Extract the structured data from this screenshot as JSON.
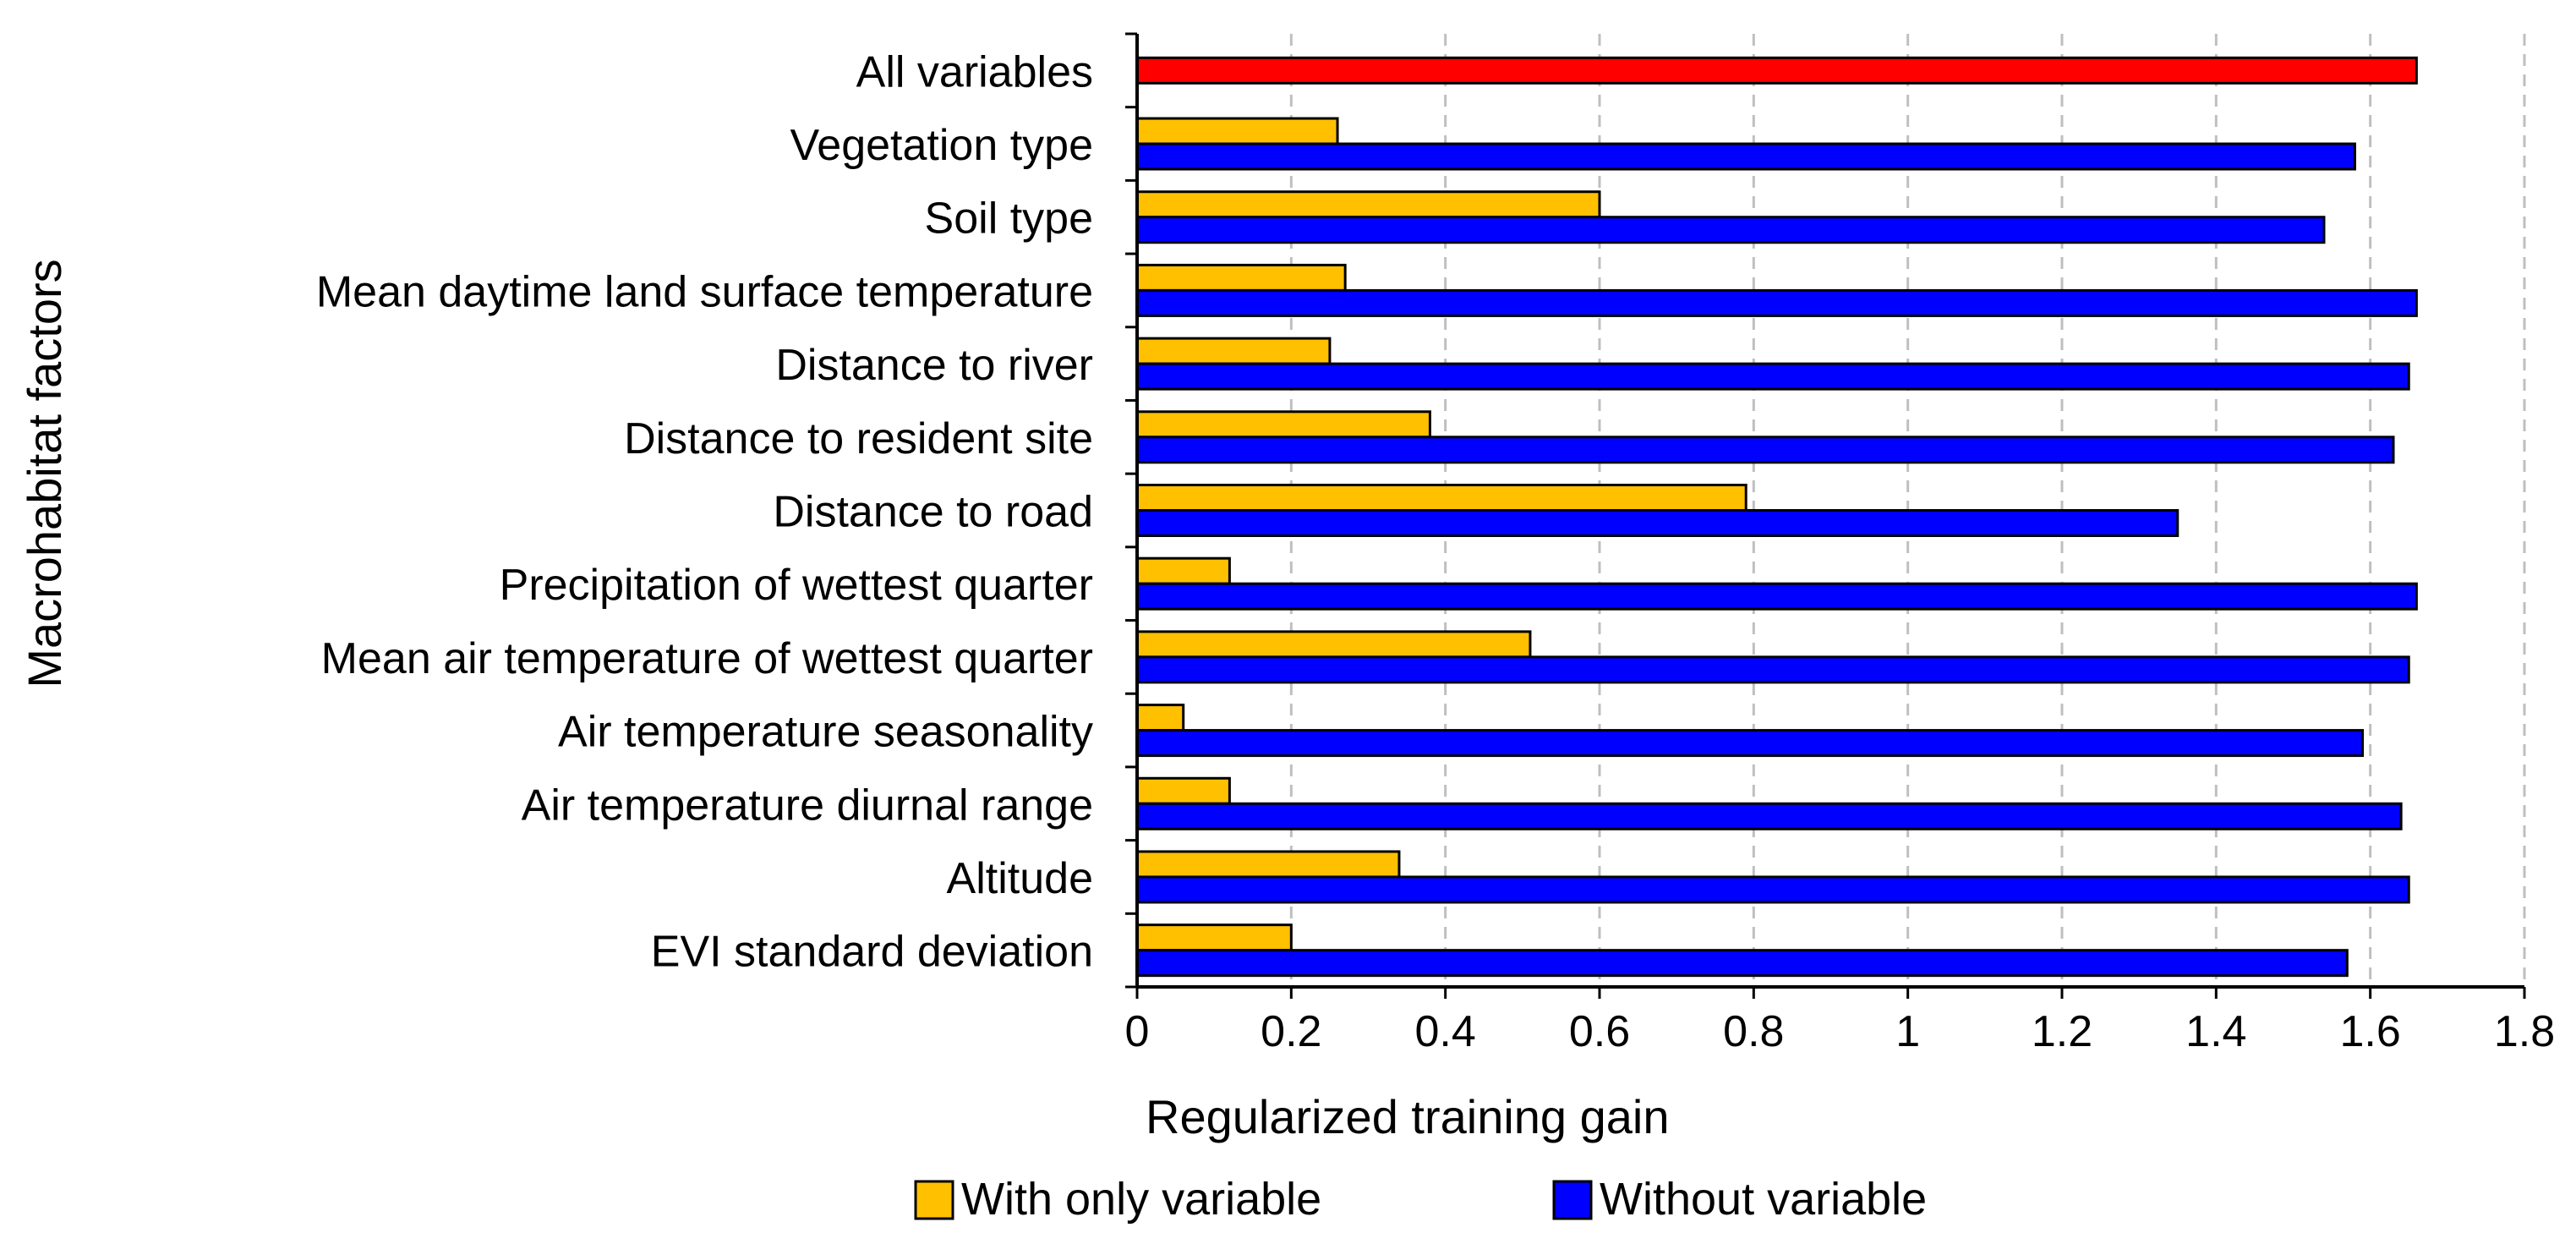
{
  "chart_data": {
    "type": "bar",
    "orientation": "horizontal",
    "title": "",
    "xlabel": "Regularized training gain",
    "ylabel": "Macrohabitat factors",
    "xlim": [
      0,
      1.8
    ],
    "xticks": [
      "0",
      "0.2",
      "0.4",
      "0.6",
      "0.8",
      "1",
      "1.2",
      "1.4",
      "1.6",
      "1.8"
    ],
    "grid": "vertical dashed",
    "legend_position": "bottom",
    "categories": [
      "All variables",
      "Vegetation type",
      "Soil type",
      "Mean daytime land surface temperature",
      "Distance to river",
      "Distance to resident site",
      "Distance to road",
      "Precipitation of wettest quarter",
      "Mean air temperature of wettest quarter",
      "Air temperature seasonality",
      "Air temperature diurnal range",
      "Altitude",
      "EVI standard deviation"
    ],
    "all_variables": {
      "name": "All variables",
      "value": 1.66,
      "color": "#ff0000"
    },
    "series": [
      {
        "name": "With only variable",
        "color": "#ffc000",
        "values": [
          null,
          0.26,
          0.6,
          0.27,
          0.25,
          0.38,
          0.79,
          0.12,
          0.51,
          0.06,
          0.12,
          0.34,
          0.2
        ]
      },
      {
        "name": "Without variable",
        "color": "#0000ff",
        "values": [
          null,
          1.58,
          1.54,
          1.66,
          1.65,
          1.63,
          1.35,
          1.66,
          1.65,
          1.59,
          1.64,
          1.65,
          1.57
        ]
      }
    ]
  }
}
